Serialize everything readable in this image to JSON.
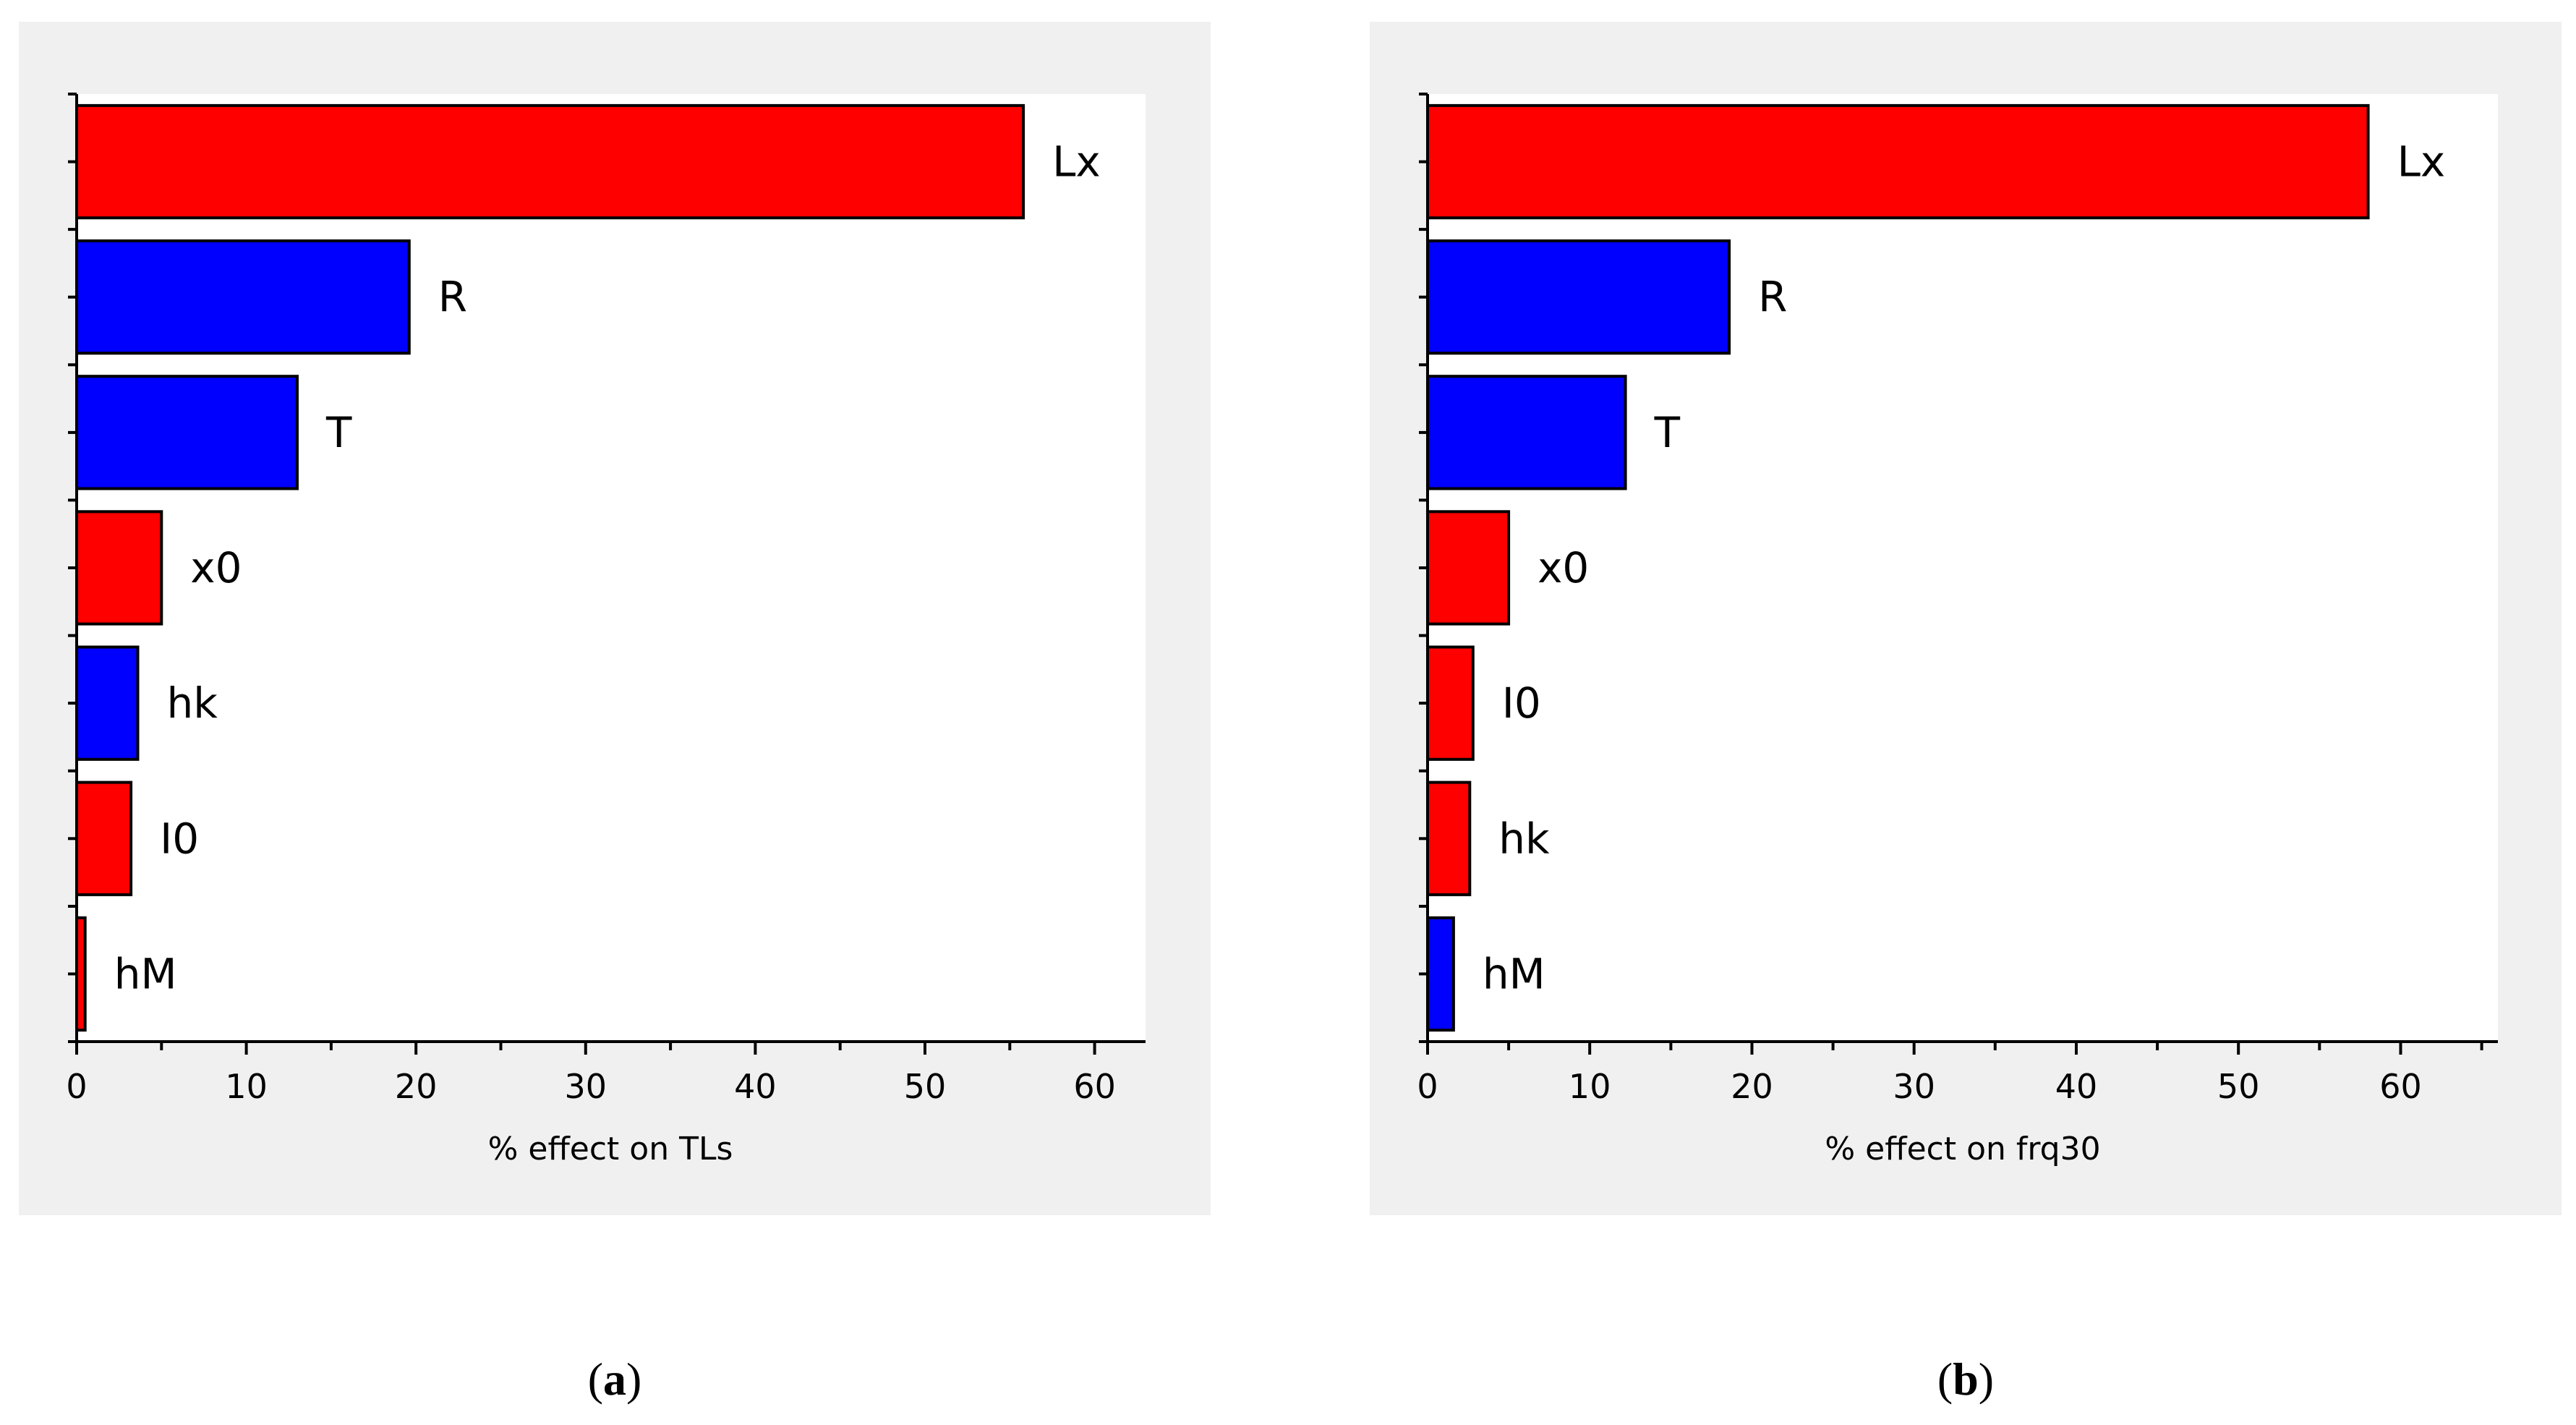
{
  "figure": {
    "colors": {
      "positive": "#ff0000",
      "negative": "#0000ff",
      "panel_bg": "#f0f0f0",
      "plot_bg": "#ffffff",
      "axis": "#000000"
    }
  },
  "chart_data": [
    {
      "type": "bar",
      "orientation": "horizontal",
      "panel_label": "(a)",
      "panel_letter": "a",
      "xlabel": "% effect on TLs",
      "xlim": [
        0,
        63
      ],
      "xticks": [
        0,
        10,
        20,
        30,
        40,
        50,
        60
      ],
      "xtick_labels": [
        "0",
        "10",
        "20",
        "30",
        "40",
        "50",
        "60"
      ],
      "bars": [
        {
          "label": "Lx",
          "value": 55.8,
          "sign": "positive"
        },
        {
          "label": "R",
          "value": 19.6,
          "sign": "negative"
        },
        {
          "label": "T",
          "value": 13.0,
          "sign": "negative"
        },
        {
          "label": "x0",
          "value": 5.0,
          "sign": "positive"
        },
        {
          "label": "hk",
          "value": 3.6,
          "sign": "negative"
        },
        {
          "label": "I0",
          "value": 3.2,
          "sign": "positive"
        },
        {
          "label": "hM",
          "value": 0.5,
          "sign": "positive"
        }
      ]
    },
    {
      "type": "bar",
      "orientation": "horizontal",
      "panel_label": "(b)",
      "panel_letter": "b",
      "xlabel": "% effect on frq30",
      "xlim": [
        0,
        66
      ],
      "xticks": [
        0,
        10,
        20,
        30,
        40,
        50,
        60
      ],
      "xtick_labels": [
        "0",
        "10",
        "20",
        "30",
        "40",
        "50",
        "60"
      ],
      "bars": [
        {
          "label": "Lx",
          "value": 58.0,
          "sign": "positive"
        },
        {
          "label": "R",
          "value": 18.6,
          "sign": "negative"
        },
        {
          "label": "T",
          "value": 12.2,
          "sign": "negative"
        },
        {
          "label": "x0",
          "value": 5.0,
          "sign": "positive"
        },
        {
          "label": "I0",
          "value": 2.8,
          "sign": "positive"
        },
        {
          "label": "hk",
          "value": 2.6,
          "sign": "positive"
        },
        {
          "label": "hM",
          "value": 1.6,
          "sign": "negative"
        }
      ]
    }
  ]
}
